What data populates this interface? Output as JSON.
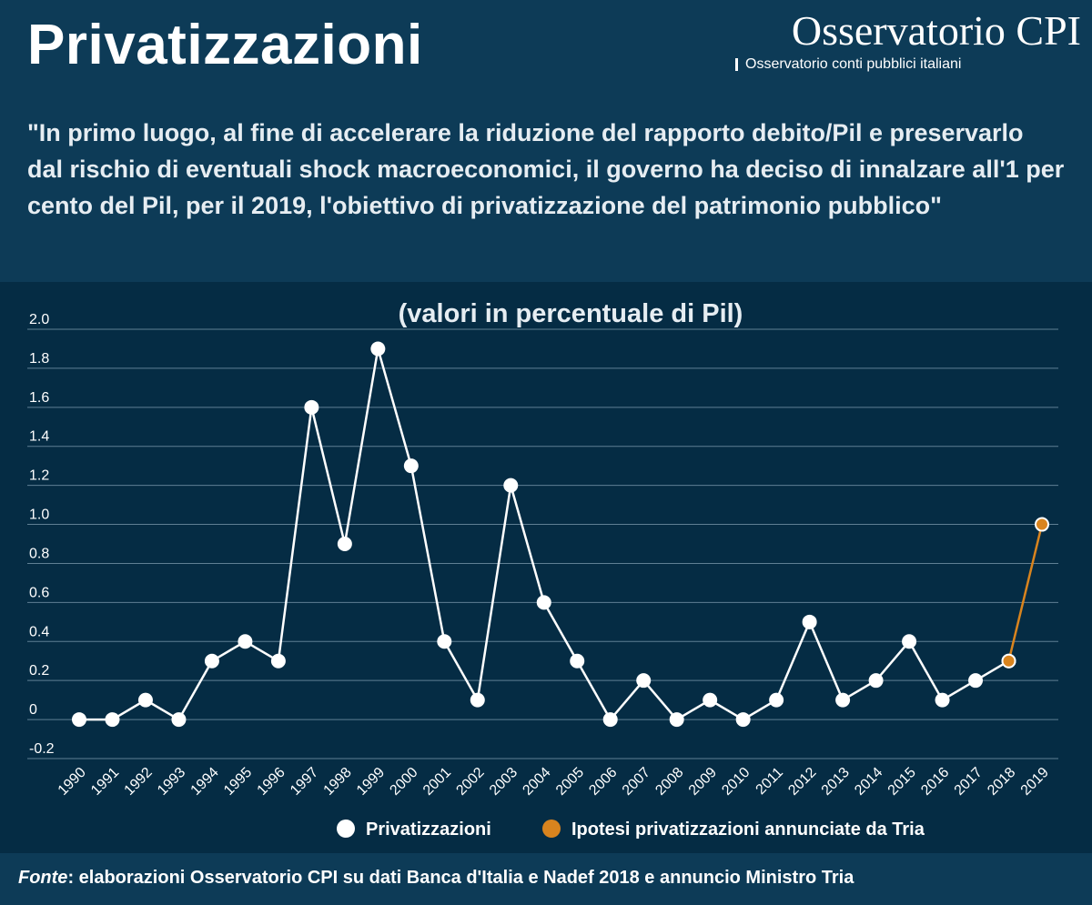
{
  "header": {
    "title": "Privatizzazioni",
    "brand_name": "Osservatorio CPI",
    "brand_sub": "Osservatorio conti pubblici italiani",
    "quote": "\"In primo luogo, al fine di accelerare la riduzione del rapporto debito/Pil e preservarlo dal rischio di eventuali shock macroeconomici, il governo ha deciso di innalzare all'1 per cento del Pil, per il 2019, l'obiettivo di privatizzazione del patrimonio pubblico\""
  },
  "footer": {
    "source_label": "Fonte",
    "source_text": ": elaborazioni Osservatorio CPI su dati Banca d'Italia e Nadef 2018 e annuncio Ministro Tria"
  },
  "colors": {
    "background_chart": "#052c44",
    "background_header": "#0d3b57",
    "series_main": "#ffffff",
    "series_forecast": "#d9841e"
  },
  "chart_data": {
    "type": "line",
    "title": "(valori in percentuale di Pil)",
    "xlabel": "",
    "ylabel": "",
    "ylim": [
      -0.2,
      2.0
    ],
    "yticks": [
      -0.2,
      0,
      0.2,
      0.4,
      0.6,
      0.8,
      1.0,
      1.2,
      1.4,
      1.6,
      1.8,
      2.0
    ],
    "ytick_labels": [
      "-0.2",
      "0",
      "0.2",
      "0.4",
      "0.6",
      "0.8",
      "1.0",
      "1.2",
      "1.4",
      "1.6",
      "1.8",
      "2.0"
    ],
    "grid": true,
    "legend_position": "bottom-center",
    "categories": [
      "1990",
      "1991",
      "1992",
      "1993",
      "1994",
      "1995",
      "1996",
      "1997",
      "1998",
      "1999",
      "2000",
      "2001",
      "2002",
      "2003",
      "2004",
      "2005",
      "2006",
      "2007",
      "2008",
      "2009",
      "2010",
      "2011",
      "2012",
      "2013",
      "2014",
      "2015",
      "2016",
      "2017",
      "2018",
      "2019"
    ],
    "series": [
      {
        "name": "Privatizzazioni",
        "color": "#ffffff",
        "x": [
          "1990",
          "1991",
          "1992",
          "1993",
          "1994",
          "1995",
          "1996",
          "1997",
          "1998",
          "1999",
          "2000",
          "2001",
          "2002",
          "2003",
          "2004",
          "2005",
          "2006",
          "2007",
          "2008",
          "2009",
          "2010",
          "2011",
          "2012",
          "2013",
          "2014",
          "2015",
          "2016",
          "2017",
          "2018"
        ],
        "values": [
          0,
          0,
          0.1,
          0,
          0.3,
          0.4,
          0.3,
          1.6,
          0.9,
          1.9,
          1.3,
          0.4,
          0.1,
          1.2,
          0.6,
          0.3,
          0,
          0.2,
          0,
          0.1,
          0,
          0.1,
          0.5,
          0.1,
          0.2,
          0.4,
          0.1,
          0.2,
          0.3
        ]
      },
      {
        "name": "Ipotesi privatizzazioni annunciate da Tria",
        "color": "#d9841e",
        "x": [
          "2018",
          "2019"
        ],
        "values": [
          0.3,
          1.0
        ]
      }
    ]
  }
}
